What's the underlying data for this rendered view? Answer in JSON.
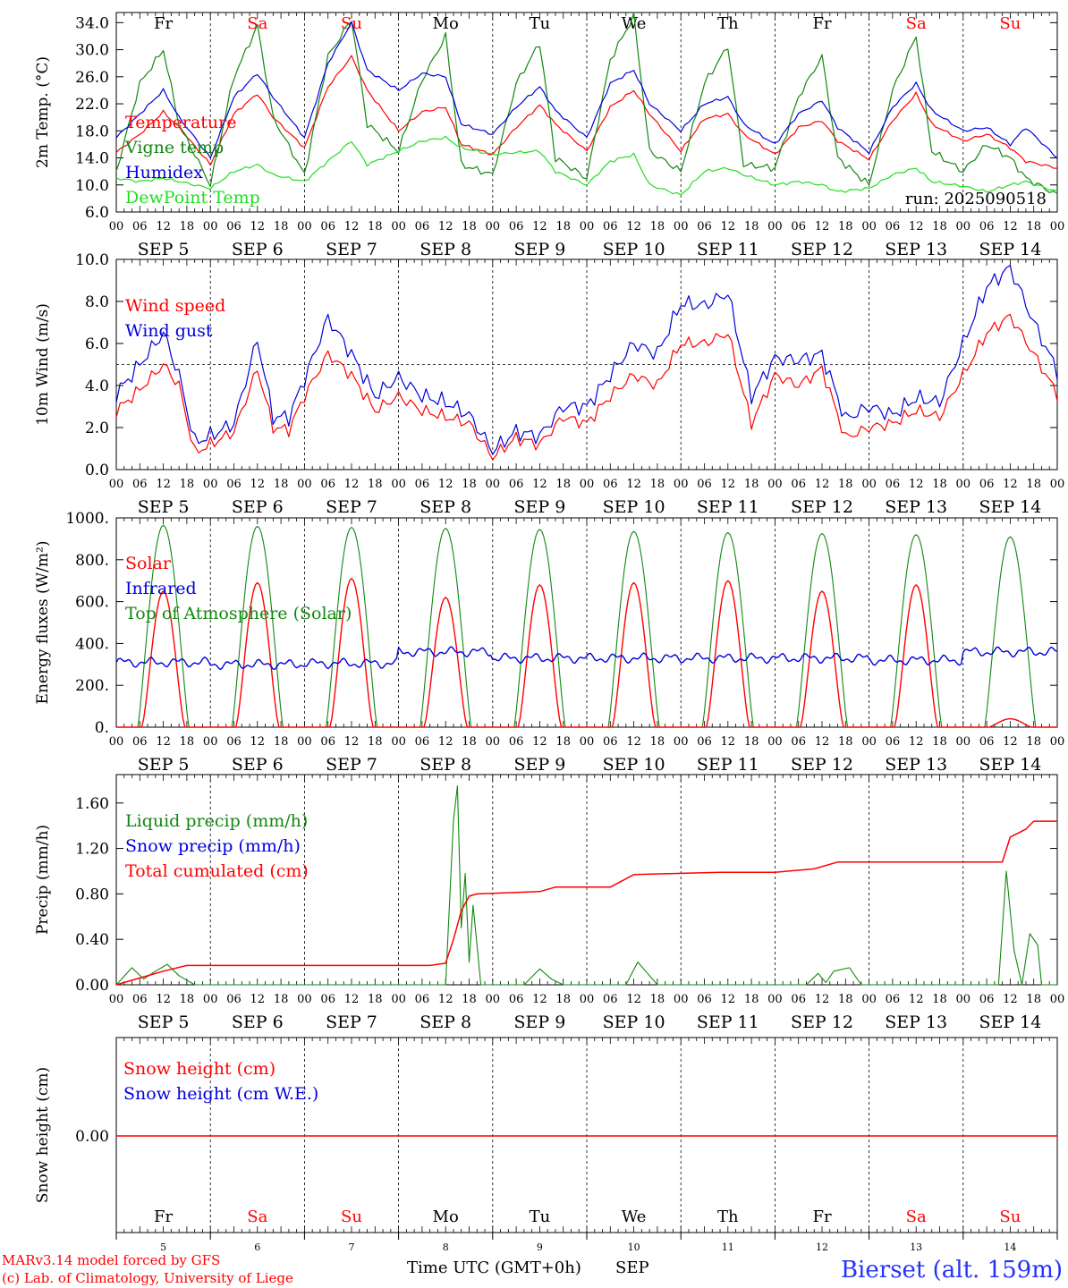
{
  "colors": {
    "red": "#ff0000",
    "blue": "#0000dd",
    "green": "#118811",
    "lightgreen": "#22dd22",
    "weekend": "#ff0000",
    "weekday": "#000000",
    "station": "#2233ff"
  },
  "days": {
    "abbr": [
      "Fr",
      "Sa",
      "Su",
      "Mo",
      "Tu",
      "We",
      "Th",
      "Fr",
      "Sa",
      "Su"
    ],
    "weekend": [
      false,
      true,
      true,
      false,
      false,
      false,
      false,
      false,
      true,
      true
    ],
    "dates": [
      "SEP  5",
      "SEP  6",
      "SEP  7",
      "SEP  8",
      "SEP  9",
      "SEP 10",
      "SEP 11",
      "SEP 12",
      "SEP 13",
      "SEP 14"
    ],
    "day_numbers": [
      "5",
      "6",
      "7",
      "8",
      "9",
      "10",
      "11",
      "12",
      "13",
      "14"
    ],
    "hour_labels": [
      "00",
      "06",
      "12",
      "18"
    ],
    "end_hour_label": "00"
  },
  "footer": {
    "model": "MARv3.14 model forced by GFS",
    "lab": "(c) Lab. of Climatology, University of Liege",
    "xlabel": "Time UTC (GMT+0h)",
    "month": "SEP",
    "station": "Bierset (alt. 159m)"
  },
  "chart_data": [
    {
      "type": "line",
      "ylabel": "2m Temp. (°C)",
      "yticks": [
        "6.0",
        "10.0",
        "14.0",
        "18.0",
        "22.0",
        "26.0",
        "30.0",
        "34.0"
      ],
      "ylim": [
        6,
        35.5
      ],
      "run_label": "run: 2025090518",
      "x_hours": [
        0,
        6,
        12,
        16,
        24,
        30,
        36,
        40,
        48,
        54,
        60,
        64,
        72,
        78,
        84,
        88,
        96,
        102,
        108,
        112,
        120,
        126,
        132,
        136,
        144,
        150,
        156,
        160,
        168,
        174,
        180,
        184,
        192,
        198,
        204,
        208,
        216,
        222,
        228,
        232,
        240
      ],
      "series": [
        {
          "name": "Temperature",
          "color": "red",
          "values": [
            14.8,
            17.5,
            20.8,
            18.5,
            13.0,
            20.5,
            23.5,
            20.0,
            15.5,
            24.5,
            29.0,
            24.0,
            18.0,
            20.8,
            21.5,
            16.0,
            14.5,
            18.5,
            21.8,
            19.0,
            15.0,
            21.5,
            24.0,
            20.5,
            15.0,
            19.8,
            20.5,
            17.5,
            14.5,
            18.5,
            19.5,
            16.5,
            13.8,
            19.5,
            23.5,
            19.0,
            16.5,
            17.5,
            15.5,
            13.5,
            12.5
          ]
        },
        {
          "name": "Vigne temp",
          "color": "green",
          "values": [
            12.0,
            25.0,
            30.0,
            19.0,
            10.0,
            26.0,
            33.5,
            20.0,
            11.5,
            29.0,
            34.5,
            19.0,
            15.0,
            25.5,
            32.0,
            13.0,
            11.5,
            25.0,
            31.0,
            14.0,
            11.0,
            28.5,
            35.0,
            15.0,
            12.0,
            25.0,
            30.5,
            13.0,
            12.5,
            23.0,
            29.0,
            14.0,
            10.0,
            24.0,
            32.0,
            15.0,
            12.0,
            16.0,
            14.0,
            11.0,
            8.5
          ]
        },
        {
          "name": "Humidex",
          "color": "blue",
          "values": [
            17.0,
            20.5,
            24.0,
            20.0,
            14.0,
            23.0,
            26.5,
            23.0,
            17.0,
            28.0,
            34.0,
            27.0,
            24.0,
            26.5,
            26.0,
            19.0,
            17.5,
            21.5,
            24.5,
            21.0,
            17.0,
            25.0,
            27.0,
            22.0,
            18.0,
            22.0,
            23.0,
            19.0,
            16.0,
            20.5,
            22.5,
            18.5,
            14.8,
            21.5,
            25.0,
            21.0,
            18.0,
            18.5,
            16.0,
            18.5,
            14.0
          ]
        },
        {
          "name": "DewPoint Temp",
          "color": "lightgreen",
          "values": [
            11.0,
            10.5,
            11.0,
            10.5,
            9.5,
            12.0,
            13.0,
            11.5,
            10.5,
            13.5,
            16.5,
            13.0,
            15.0,
            16.5,
            17.0,
            15.5,
            14.5,
            14.8,
            15.0,
            12.0,
            10.0,
            13.5,
            14.5,
            10.0,
            8.5,
            12.0,
            12.5,
            11.5,
            10.0,
            10.5,
            10.0,
            9.0,
            9.5,
            11.5,
            12.5,
            10.5,
            9.8,
            9.0,
            10.0,
            10.5,
            9.0
          ]
        }
      ]
    },
    {
      "type": "line",
      "ylabel": "10m Wind (m/s)",
      "yticks": [
        "0.0",
        "2.0",
        "4.0",
        "6.0",
        "8.0",
        "10.0"
      ],
      "ylim": [
        0,
        10
      ],
      "reference_line": 5,
      "x_hours": [
        0,
        6,
        12,
        16,
        20,
        24,
        30,
        36,
        40,
        44,
        48,
        54,
        60,
        66,
        72,
        78,
        84,
        90,
        96,
        102,
        108,
        114,
        120,
        126,
        132,
        138,
        144,
        150,
        156,
        162,
        168,
        174,
        180,
        186,
        192,
        198,
        204,
        210,
        216,
        222,
        228,
        234,
        240
      ],
      "series": [
        {
          "name": "Wind speed",
          "color": "red",
          "values": [
            2.8,
            3.8,
            5.0,
            4.0,
            0.8,
            1.2,
            1.8,
            4.8,
            2.0,
            1.9,
            3.5,
            5.5,
            4.5,
            2.8,
            3.5,
            2.8,
            2.5,
            2.2,
            0.6,
            1.5,
            1.2,
            2.5,
            2.2,
            3.5,
            4.5,
            4.0,
            6.0,
            6.0,
            6.5,
            2.2,
            4.5,
            4.0,
            4.8,
            1.5,
            2.0,
            2.2,
            2.8,
            2.5,
            4.5,
            6.5,
            7.3,
            5.5,
            3.6
          ]
        },
        {
          "name": "Wind gust",
          "color": "blue",
          "values": [
            3.6,
            5.0,
            6.5,
            4.5,
            1.3,
            1.6,
            2.2,
            6.2,
            2.5,
            2.5,
            4.3,
            7.2,
            5.5,
            3.5,
            4.4,
            3.5,
            3.2,
            2.6,
            0.9,
            1.8,
            1.6,
            3.0,
            3.0,
            4.5,
            6.0,
            5.5,
            7.9,
            7.8,
            8.4,
            3.5,
            5.3,
            5.2,
            5.5,
            2.4,
            3.0,
            2.6,
            3.4,
            3.2,
            6.0,
            8.7,
            9.6,
            7.0,
            4.7
          ]
        }
      ]
    },
    {
      "type": "line",
      "ylabel": "Energy fluxes (W/m²)",
      "yticks": [
        "0.",
        "200.",
        "400.",
        "600.",
        "800.",
        "1000."
      ],
      "ylim": [
        0,
        1000
      ],
      "series": [
        {
          "name": "Solar",
          "color": "red",
          "peaks": [
            650,
            690,
            710,
            620,
            680,
            690,
            700,
            650,
            680,
            40
          ]
        },
        {
          "name": "Infrared",
          "color": "blue",
          "daily_mean": [
            310,
            300,
            305,
            360,
            330,
            330,
            330,
            330,
            320,
            360
          ]
        },
        {
          "name": "Top of Atmosphere (Solar)",
          "color": "green",
          "peaks": [
            965,
            960,
            955,
            950,
            945,
            935,
            930,
            925,
            920,
            910
          ]
        }
      ]
    },
    {
      "type": "line",
      "ylabel": "Precip (mm/h)",
      "yticks": [
        "0.00",
        "0.40",
        "0.80",
        "1.20",
        "1.60"
      ],
      "ylim": [
        0,
        1.85
      ],
      "x_hours": [
        0,
        4,
        8,
        12,
        16,
        20,
        24,
        76,
        80,
        84,
        88,
        92,
        96,
        108,
        120,
        132,
        144,
        156,
        168,
        180,
        192,
        210,
        222,
        228,
        232,
        240
      ],
      "series": [
        {
          "name": "Liquid precip (mm/h)",
          "color": "green",
          "points": [
            [
              0,
              0
            ],
            [
              4,
              0.15
            ],
            [
              7,
              0.05
            ],
            [
              10,
              0.12
            ],
            [
              13,
              0.18
            ],
            [
              16,
              0.08
            ],
            [
              20,
              0.0
            ],
            [
              84,
              0.0
            ],
            [
              86,
              1.45
            ],
            [
              87,
              1.75
            ],
            [
              88,
              0.5
            ],
            [
              89,
              0.98
            ],
            [
              90,
              0.2
            ],
            [
              91,
              0.7
            ],
            [
              93,
              0.0
            ],
            [
              104,
              0.0
            ],
            [
              108,
              0.14
            ],
            [
              111,
              0.05
            ],
            [
              114,
              0.0
            ],
            [
              130,
              0.0
            ],
            [
              133,
              0.2
            ],
            [
              135,
              0.12
            ],
            [
              138,
              0.0
            ],
            [
              150,
              0.0
            ],
            [
              176,
              0.0
            ],
            [
              179,
              0.1
            ],
            [
              181,
              0.02
            ],
            [
              183,
              0.12
            ],
            [
              187,
              0.15
            ],
            [
              190,
              0.0
            ],
            [
              225,
              0.0
            ],
            [
              227,
              1.0
            ],
            [
              229,
              0.3
            ],
            [
              231,
              0.0
            ],
            [
              233,
              0.45
            ],
            [
              235,
              0.35
            ],
            [
              236,
              0.0
            ],
            [
              240,
              0.0
            ]
          ]
        },
        {
          "name": "Snow precip (mm/h)",
          "color": "blue",
          "values": []
        },
        {
          "name": "Total cumulated (cm)",
          "color": "red",
          "points": [
            [
              0,
              0
            ],
            [
              6,
              0.06
            ],
            [
              12,
              0.12
            ],
            [
              18,
              0.17
            ],
            [
              80,
              0.17
            ],
            [
              84,
              0.19
            ],
            [
              86,
              0.4
            ],
            [
              88,
              0.65
            ],
            [
              90,
              0.78
            ],
            [
              92,
              0.8
            ],
            [
              108,
              0.82
            ],
            [
              112,
              0.86
            ],
            [
              126,
              0.86
            ],
            [
              132,
              0.97
            ],
            [
              154,
              0.99
            ],
            [
              168,
              0.99
            ],
            [
              178,
              1.02
            ],
            [
              184,
              1.08
            ],
            [
              226,
              1.08
            ],
            [
              228,
              1.3
            ],
            [
              232,
              1.37
            ],
            [
              234,
              1.44
            ],
            [
              240,
              1.44
            ]
          ]
        }
      ]
    },
    {
      "type": "line",
      "ylabel": "Snow height (cm)",
      "yticks": [
        "0.00"
      ],
      "series": [
        {
          "name": "Snow height (cm)",
          "color": "red",
          "values": [
            0,
            0
          ]
        },
        {
          "name": "Snow height (cm W.E.)",
          "color": "blue",
          "values": []
        }
      ]
    }
  ]
}
